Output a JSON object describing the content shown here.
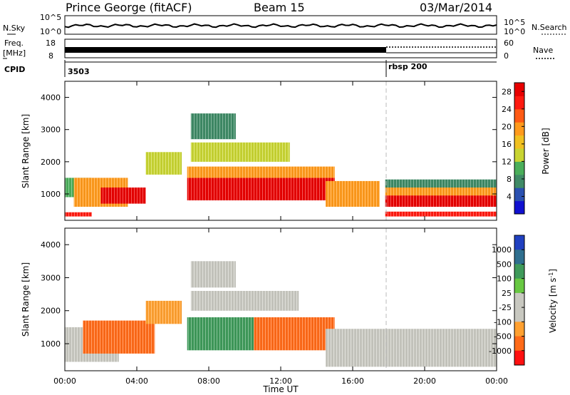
{
  "header": {
    "station": "Prince George (fitACF)",
    "beam": "Beam 15",
    "date": "03/Mar/2014"
  },
  "status_panels": {
    "nsky_label": "N.Sky",
    "nsky_ticks": [
      "10^5",
      "10^0"
    ],
    "nsearch_label": "N.Search",
    "nsearch_ticks": [
      "10^5",
      "10^0"
    ],
    "freq_label_1": "Freq.",
    "freq_label_2": "[MHz]",
    "freq_ticks": [
      "18",
      "8"
    ],
    "nave_label": "Nave",
    "nave_ticks": [
      "60",
      "0"
    ],
    "cpid_label": "CPID",
    "cpid_values": [
      "3503",
      "rbsp 200"
    ],
    "cpid_change_time_hours": 18.0
  },
  "colors": {
    "power_scale": [
      "#1010d0",
      "#2a50b0",
      "#3f8a66",
      "#4aae5a",
      "#c8d432",
      "#f0c020",
      "#ff9a1c",
      "#ff5a14",
      "#ff1a10",
      "#e80000"
    ],
    "velocity_scale": [
      "#2040c0",
      "#2f6f8f",
      "#3f9a5a",
      "#68c842",
      "#c8c8c0",
      "#c8c8c0",
      "#ffa030",
      "#ff6a18",
      "#ff1010"
    ]
  },
  "chart_data": [
    {
      "type": "heatmap",
      "name": "Power",
      "ylabel": "Slant Range [km]",
      "xlabel": "Time UT",
      "xlim": [
        0,
        24
      ],
      "ylim": [
        180,
        4500
      ],
      "yticks": [
        "1000",
        "2000",
        "3000",
        "4000"
      ],
      "xticks": [
        "00:00",
        "04:00",
        "08:00",
        "12:00",
        "16:00",
        "20:00",
        "00:00"
      ],
      "colorbar_label": "Power [dB]",
      "colorbar_ticks": [
        "4",
        "8",
        "12",
        "16",
        "20",
        "24",
        "28"
      ],
      "colorbar_range": [
        0,
        30
      ],
      "regions": [
        {
          "t0": 0.0,
          "t1": 1.5,
          "r0": 900,
          "r1": 1500,
          "value": 10
        },
        {
          "t0": 0.0,
          "t1": 1.5,
          "r0": 300,
          "r1": 430,
          "value": 25
        },
        {
          "t0": 0.5,
          "t1": 3.5,
          "r0": 600,
          "r1": 1500,
          "value": 20
        },
        {
          "t0": 2.0,
          "t1": 4.5,
          "r0": 700,
          "r1": 1200,
          "value": 27
        },
        {
          "t0": 4.5,
          "t1": 6.5,
          "r0": 1600,
          "r1": 2300,
          "value": 13
        },
        {
          "t0": 6.8,
          "t1": 15.0,
          "r0": 800,
          "r1": 1500,
          "value": 28
        },
        {
          "t0": 6.8,
          "t1": 15.0,
          "r0": 1500,
          "r1": 1850,
          "value": 20
        },
        {
          "t0": 7.0,
          "t1": 12.5,
          "r0": 2000,
          "r1": 2600,
          "value": 14
        },
        {
          "t0": 7.0,
          "t1": 9.5,
          "r0": 2700,
          "r1": 3500,
          "value": 6
        },
        {
          "t0": 14.5,
          "t1": 17.5,
          "r0": 600,
          "r1": 1400,
          "value": 18
        },
        {
          "t0": 17.8,
          "t1": 24.0,
          "r0": 1200,
          "r1": 1450,
          "value": 8
        },
        {
          "t0": 17.8,
          "t1": 24.0,
          "r0": 950,
          "r1": 1200,
          "value": 18
        },
        {
          "t0": 17.8,
          "t1": 24.0,
          "r0": 600,
          "r1": 950,
          "value": 27
        },
        {
          "t0": 17.8,
          "t1": 24.0,
          "r0": 300,
          "r1": 450,
          "value": 26
        }
      ]
    },
    {
      "type": "heatmap",
      "name": "Velocity",
      "ylabel": "Slant Range [km]",
      "xlabel": "Time UT",
      "xlim": [
        0,
        24
      ],
      "ylim": [
        180,
        4500
      ],
      "yticks": [
        "1000",
        "2000",
        "3000",
        "4000"
      ],
      "xticks": [
        "00:00",
        "04:00",
        "08:00",
        "12:00",
        "16:00",
        "20:00",
        "00:00"
      ],
      "colorbar_label": "Velocity [m s^-1]",
      "colorbar_ticks": [
        "1000",
        "500",
        "100",
        "25",
        "-25",
        "-100",
        "-500",
        "-1000"
      ],
      "regions": [
        {
          "t0": 0.0,
          "t1": 3.0,
          "r0": 450,
          "r1": 1500,
          "value": 0
        },
        {
          "t0": 1.0,
          "t1": 5.0,
          "r0": 700,
          "r1": 1700,
          "value": -150
        },
        {
          "t0": 4.5,
          "t1": 6.5,
          "r0": 1600,
          "r1": 2300,
          "value": -50
        },
        {
          "t0": 6.8,
          "t1": 10.5,
          "r0": 800,
          "r1": 1800,
          "value": 300
        },
        {
          "t0": 10.5,
          "t1": 15.0,
          "r0": 800,
          "r1": 1800,
          "value": -200
        },
        {
          "t0": 7.0,
          "t1": 13.0,
          "r0": 2000,
          "r1": 2600,
          "value": 0
        },
        {
          "t0": 7.0,
          "t1": 9.5,
          "r0": 2700,
          "r1": 3500,
          "value": 0
        },
        {
          "t0": 14.5,
          "t1": 24.0,
          "r0": 300,
          "r1": 1450,
          "value": 0
        }
      ]
    }
  ]
}
